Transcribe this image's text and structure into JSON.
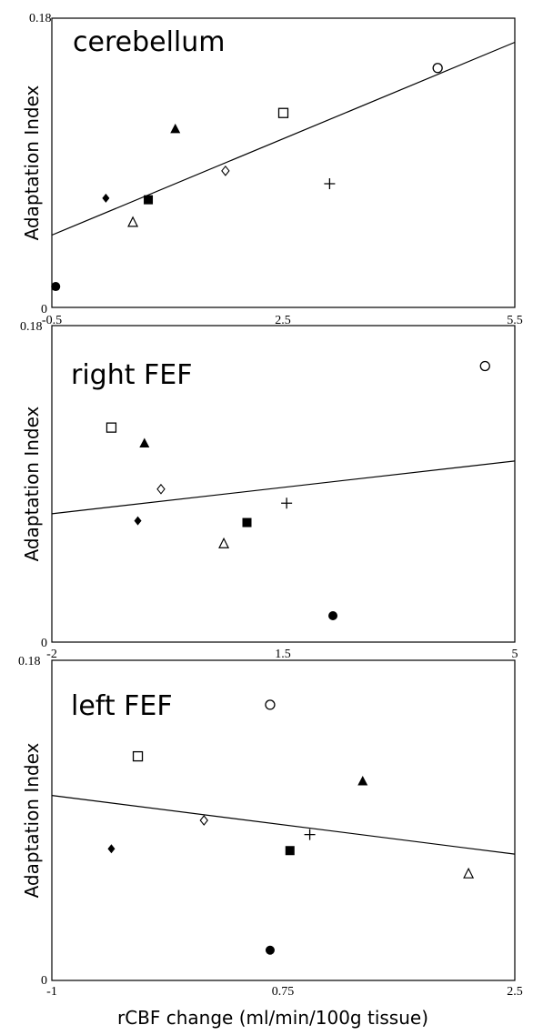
{
  "xlabel": "rCBF change (ml/min/100g tissue)",
  "chart_data": [
    {
      "type": "scatter",
      "title": "cerebellum",
      "ylabel": "Adaptation Index",
      "xlim": [
        -0.5,
        5.5
      ],
      "ylim": [
        0,
        0.18
      ],
      "x_ticks": [
        "-0.5",
        "2.5",
        "5.5"
      ],
      "y_ticks": [
        "0",
        "0.18"
      ],
      "fit_line": {
        "x": [
          -0.5,
          5.5
        ],
        "y": [
          0.045,
          0.165
        ]
      },
      "points": [
        {
          "marker": "filled-circle",
          "x": -0.45,
          "y": 0.013
        },
        {
          "marker": "filled-diamond",
          "x": 0.2,
          "y": 0.068
        },
        {
          "marker": "open-triangle",
          "x": 0.55,
          "y": 0.053
        },
        {
          "marker": "filled-square",
          "x": 0.75,
          "y": 0.067
        },
        {
          "marker": "filled-triangle",
          "x": 1.1,
          "y": 0.111
        },
        {
          "marker": "open-diamond",
          "x": 1.75,
          "y": 0.085
        },
        {
          "marker": "open-square",
          "x": 2.5,
          "y": 0.121
        },
        {
          "marker": "plus",
          "x": 3.1,
          "y": 0.077
        },
        {
          "marker": "open-circle",
          "x": 4.5,
          "y": 0.149
        }
      ]
    },
    {
      "type": "scatter",
      "title": "right FEF",
      "ylabel": "Adaptation Index",
      "xlim": [
        -2,
        5
      ],
      "ylim": [
        0,
        0.18
      ],
      "x_ticks": [
        "-2",
        "1.5",
        "5"
      ],
      "y_ticks": [
        "0",
        "0.18"
      ],
      "fit_line": {
        "x": [
          -2,
          5
        ],
        "y": [
          0.073,
          0.103
        ]
      },
      "points": [
        {
          "marker": "open-square",
          "x": -1.1,
          "y": 0.122
        },
        {
          "marker": "filled-diamond",
          "x": -0.7,
          "y": 0.069
        },
        {
          "marker": "filled-triangle",
          "x": -0.6,
          "y": 0.113
        },
        {
          "marker": "open-diamond",
          "x": -0.35,
          "y": 0.087
        },
        {
          "marker": "open-triangle",
          "x": 0.6,
          "y": 0.056
        },
        {
          "marker": "filled-square",
          "x": 0.95,
          "y": 0.068
        },
        {
          "marker": "plus",
          "x": 1.55,
          "y": 0.079
        },
        {
          "marker": "filled-circle",
          "x": 2.25,
          "y": 0.015
        },
        {
          "marker": "open-circle",
          "x": 4.55,
          "y": 0.157
        }
      ]
    },
    {
      "type": "scatter",
      "title": "left FEF",
      "ylabel": "Adaptation Index",
      "xlim": [
        -1,
        2.5
      ],
      "ylim": [
        0,
        0.18
      ],
      "x_ticks": [
        "-1",
        "0.75",
        "2.5"
      ],
      "y_ticks": [
        "0",
        "0.18"
      ],
      "fit_line": {
        "x": [
          -1,
          2.5
        ],
        "y": [
          0.104,
          0.071
        ]
      },
      "points": [
        {
          "marker": "filled-diamond",
          "x": -0.55,
          "y": 0.074
        },
        {
          "marker": "open-square",
          "x": -0.35,
          "y": 0.126
        },
        {
          "marker": "open-diamond",
          "x": 0.15,
          "y": 0.09
        },
        {
          "marker": "open-circle",
          "x": 0.65,
          "y": 0.155
        },
        {
          "marker": "filled-circle",
          "x": 0.65,
          "y": 0.017
        },
        {
          "marker": "filled-square",
          "x": 0.8,
          "y": 0.073
        },
        {
          "marker": "plus",
          "x": 0.95,
          "y": 0.082
        },
        {
          "marker": "filled-triangle",
          "x": 1.35,
          "y": 0.112
        },
        {
          "marker": "open-triangle",
          "x": 2.15,
          "y": 0.06
        }
      ]
    }
  ]
}
